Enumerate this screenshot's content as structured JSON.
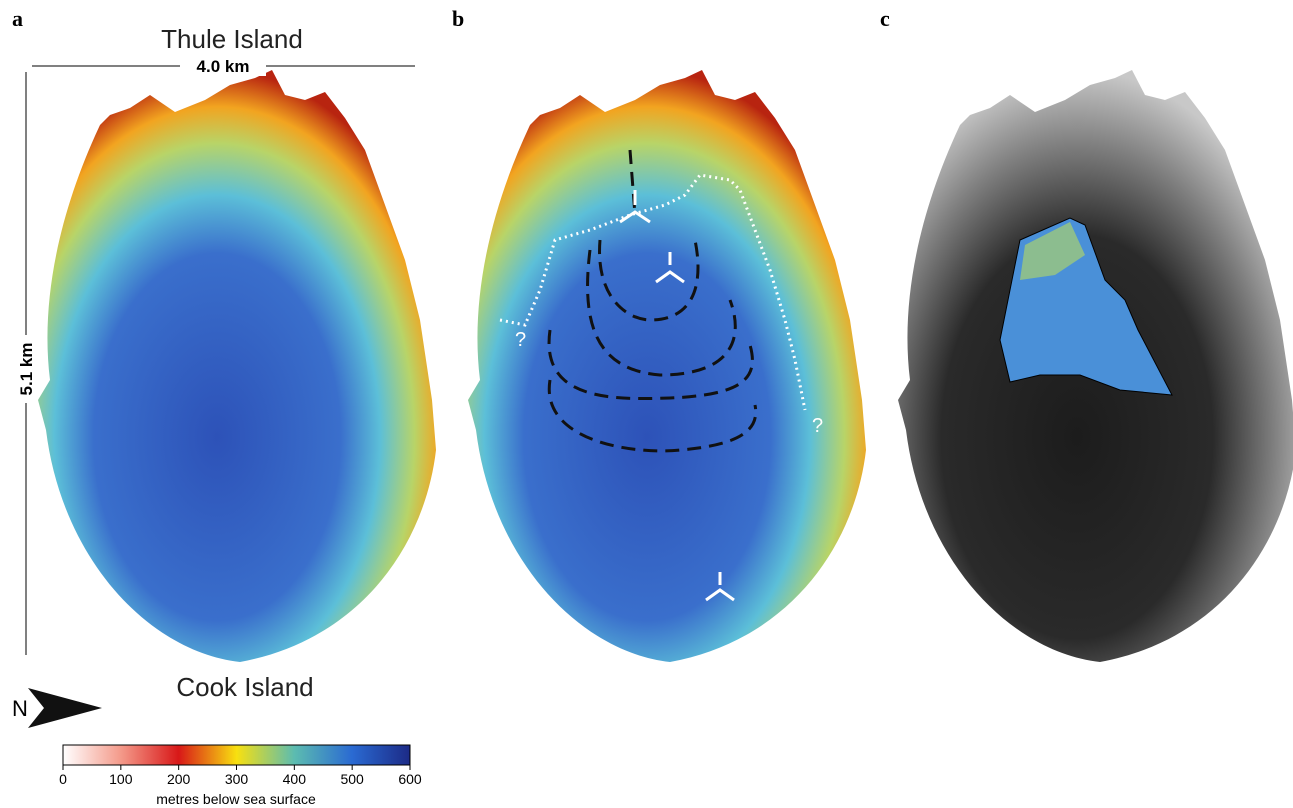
{
  "panels": [
    {
      "label": "a",
      "top_label": "Thule Island",
      "width_label": "4.0 km",
      "height_label": "5.1 km",
      "bottom_label": "Cook Island",
      "north": "N"
    },
    {
      "label": "b",
      "annotations": [
        "?",
        "?"
      ]
    },
    {
      "label": "c"
    }
  ],
  "colorbar": {
    "title": "metres below sea surface",
    "lim": [
      0,
      600
    ],
    "ticks": [
      0,
      100,
      200,
      300,
      400,
      500,
      600
    ],
    "colors": [
      "#ffffff",
      "#f49a8a",
      "#d81818",
      "#f8e010",
      "#5cbcb0",
      "#2a6ad2",
      "#1c2a86"
    ]
  }
}
